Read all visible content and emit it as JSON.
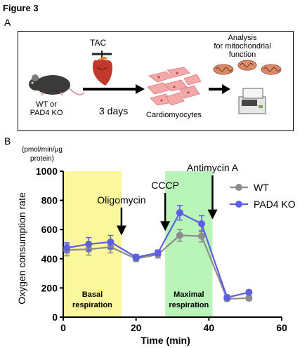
{
  "figure_label": "Figure 3",
  "panel_a": {
    "label": "A",
    "tac": "TAC",
    "mouse_line1": "WT or",
    "mouse_line2": "PAD4 KO",
    "duration": "3 days",
    "cardiomyocytes": "Cardiomyocytes",
    "analysis_line1": "Analysis",
    "analysis_line2": "for mitochondrial",
    "analysis_line3": "function"
  },
  "panel_b": {
    "label": "B"
  },
  "colors": {
    "wt": "#8c8c8c",
    "pad4ko": "#5b5fe0",
    "basal_shade": "#fbf79c",
    "maximal_shade": "#b9f5b9"
  },
  "chart_data": {
    "type": "line",
    "unit_line1": "(pmol/min/µg",
    "unit_line2": "protein)",
    "ylabel": "Oxygen consumption rate",
    "xlabel": "Time (min)",
    "xlim": [
      0,
      60
    ],
    "ylim": [
      0,
      1000
    ],
    "xticks": [
      0,
      20,
      40,
      60
    ],
    "yticks": [
      0,
      200,
      400,
      600,
      800,
      1000
    ],
    "legend_position": "top-right",
    "regions": [
      {
        "label_line1": "Basal",
        "label_line2": "respiration",
        "x_start": 0,
        "x_end": 16,
        "color": "#fbf79c"
      },
      {
        "label_line1": "Maximal",
        "label_line2": "respiration",
        "x_start": 28,
        "x_end": 41,
        "color": "#b9f5b9"
      }
    ],
    "annotations": [
      {
        "text": "Oligomycin",
        "x": 16,
        "y_text": 780,
        "y_tip": 560
      },
      {
        "text": "CCCP",
        "x": 28,
        "y_text": 880,
        "y_tip": 590
      },
      {
        "text": "Antimycin A",
        "x": 41,
        "y_text": 1000,
        "y_tip": 670
      }
    ],
    "series": [
      {
        "name": "WT",
        "color": "#8c8c8c",
        "x": [
          1,
          7,
          13,
          20,
          26,
          32,
          38,
          45,
          51
        ],
        "y": [
          460,
          465,
          480,
          400,
          430,
          560,
          555,
          125,
          130
        ],
        "err": [
          40,
          40,
          40,
          20,
          25,
          40,
          40,
          15,
          15
        ]
      },
      {
        "name": "PAD4 KO",
        "color": "#5b5fe0",
        "x": [
          1,
          7,
          13,
          20,
          26,
          32,
          38,
          45,
          51
        ],
        "y": [
          475,
          500,
          515,
          410,
          440,
          715,
          640,
          135,
          170
        ],
        "err": [
          35,
          45,
          45,
          20,
          20,
          50,
          55,
          15,
          15
        ]
      }
    ]
  }
}
